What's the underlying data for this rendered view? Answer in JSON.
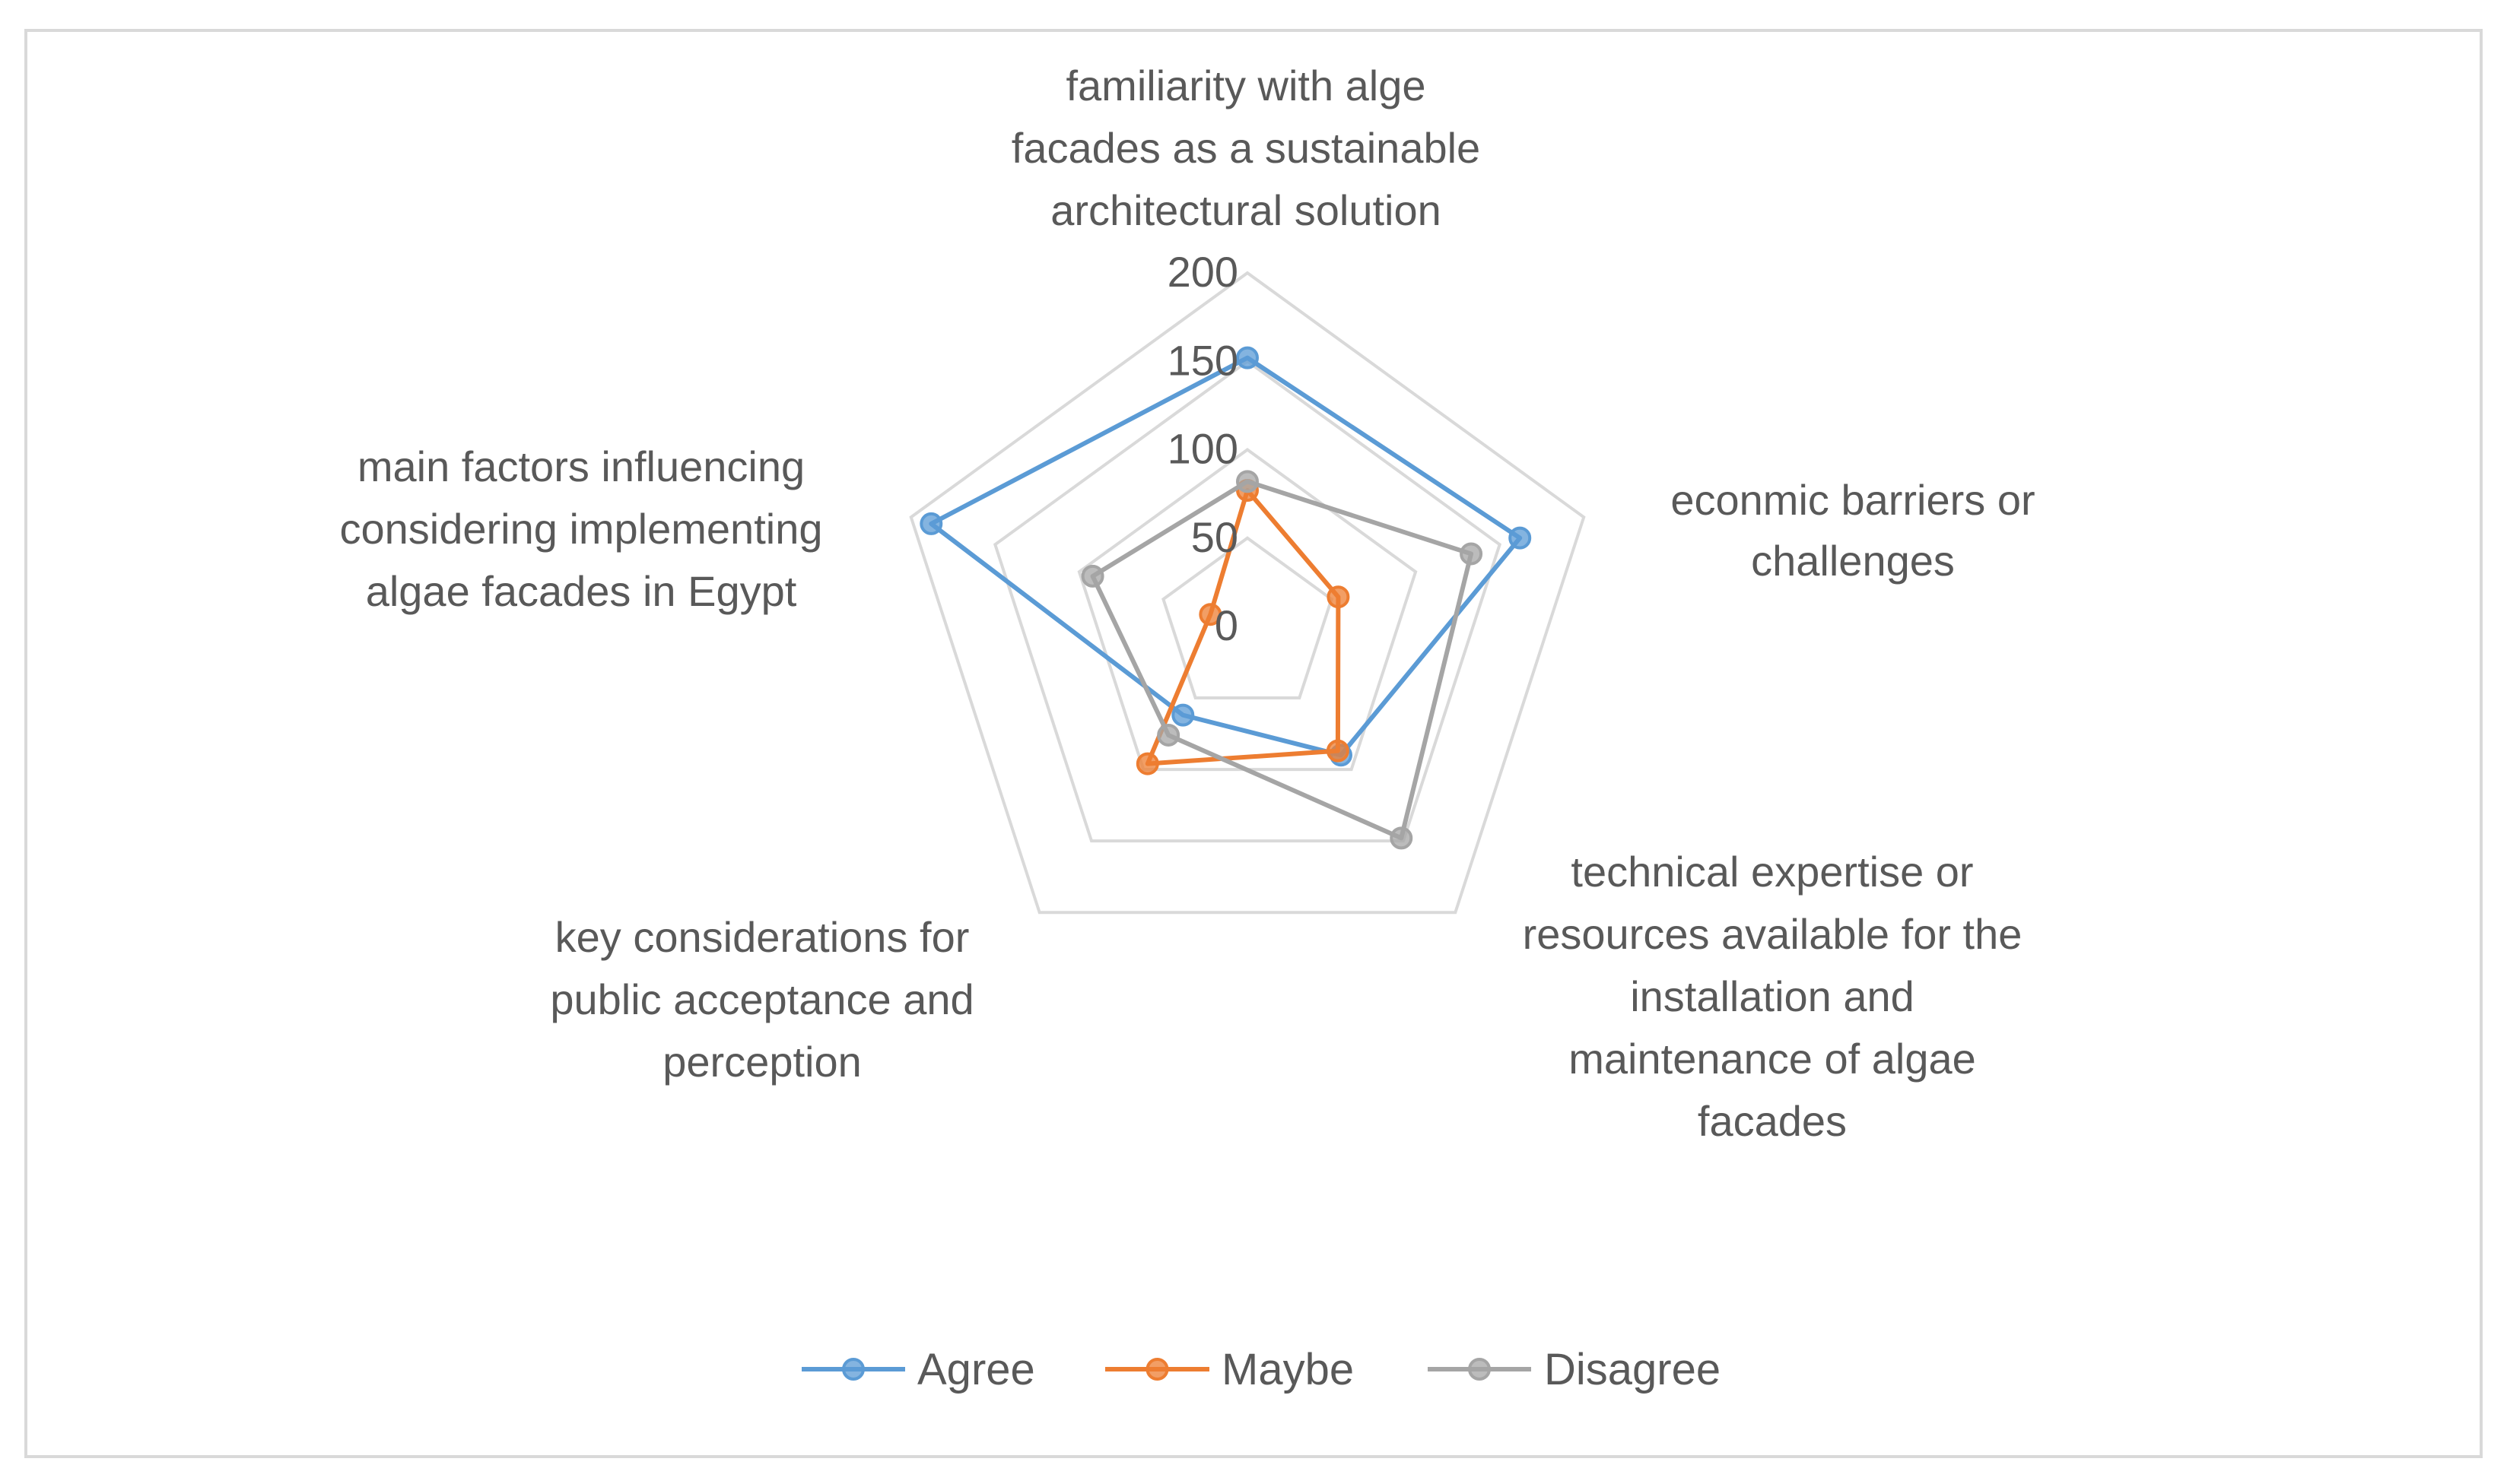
{
  "chart_data": {
    "type": "radar",
    "title": "",
    "axes": [
      [
        "familiarity with alge",
        "facades as a sustainable",
        "architectural solution"
      ],
      [
        "econmic barriers or",
        "challenges"
      ],
      [
        "technical expertise or",
        "resources available for the",
        "installation and",
        "maintenance of algae",
        "facades"
      ],
      [
        "key considerations for",
        "public acceptance and",
        "perception"
      ],
      [
        "main factors influencing",
        "considering implementing",
        "algae facades in Egypt"
      ]
    ],
    "ticks": [
      "0",
      "50",
      "100",
      "150",
      "200"
    ],
    "tick_values": [
      0,
      50,
      100,
      150,
      200
    ],
    "range": [
      0,
      200
    ],
    "series": [
      {
        "name": "Agree",
        "color": "#5b9bd5",
        "values": [
          152,
          162,
          90,
          62,
          188
        ]
      },
      {
        "name": "Maybe",
        "color": "#ed7d31",
        "values": [
          77,
          54,
          87,
          96,
          22
        ]
      },
      {
        "name": "Disagree",
        "color": "#a5a5a5",
        "values": [
          82,
          133,
          148,
          76,
          92
        ]
      }
    ],
    "grid": true,
    "grid_color": "#d9d9d9",
    "legend_position": "bottom"
  }
}
